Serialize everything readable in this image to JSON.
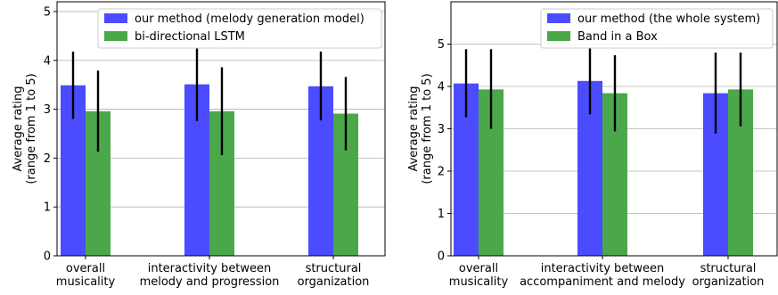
{
  "chart_data": [
    {
      "type": "bar",
      "categories": [
        [
          "overall",
          "musicality"
        ],
        [
          "interactivity between",
          "melody and progression"
        ],
        [
          "structural",
          "organization"
        ]
      ],
      "ylabel": [
        "Average rating",
        "(range from 1 to 5)"
      ],
      "ylim": [
        0,
        5.2
      ],
      "yticks": [
        0,
        1,
        2,
        3,
        4,
        5
      ],
      "grid": "horizontal",
      "legend_position": "top-right",
      "series": [
        {
          "name": "our method (melody generation model)",
          "color": "#4b4bff",
          "values": [
            3.49,
            3.51,
            3.47
          ],
          "err_low": [
            2.8,
            2.76,
            2.77
          ],
          "err_high": [
            4.18,
            4.26,
            4.18
          ]
        },
        {
          "name": "bi-directional LSTM",
          "color": "#4aa84a",
          "values": [
            2.96,
            2.96,
            2.91
          ],
          "err_low": [
            2.13,
            2.06,
            2.16
          ],
          "err_high": [
            3.79,
            3.86,
            3.66
          ]
        }
      ]
    },
    {
      "type": "bar",
      "categories": [
        [
          "overall",
          "musicality"
        ],
        [
          "interactivity between",
          "accompaniment and melody"
        ],
        [
          "structural",
          "organization"
        ]
      ],
      "ylabel": [
        "Average rating",
        "(range from 1 to 5)"
      ],
      "ylim": [
        0,
        6
      ],
      "yticks": [
        0,
        1,
        2,
        3,
        4,
        5
      ],
      "grid": "horizontal",
      "legend_position": "top-right",
      "series": [
        {
          "name": "our method (the whole system)",
          "color": "#4b4bff",
          "values": [
            4.07,
            4.13,
            3.84
          ],
          "err_low": [
            3.27,
            3.34,
            2.89
          ],
          "err_high": [
            4.88,
            4.93,
            4.8
          ]
        },
        {
          "name": "Band in a Box",
          "color": "#4aa84a",
          "values": [
            3.93,
            3.84,
            3.93
          ],
          "err_low": [
            3.0,
            2.94,
            3.06
          ],
          "err_high": [
            4.88,
            4.74,
            4.8
          ]
        }
      ]
    }
  ]
}
